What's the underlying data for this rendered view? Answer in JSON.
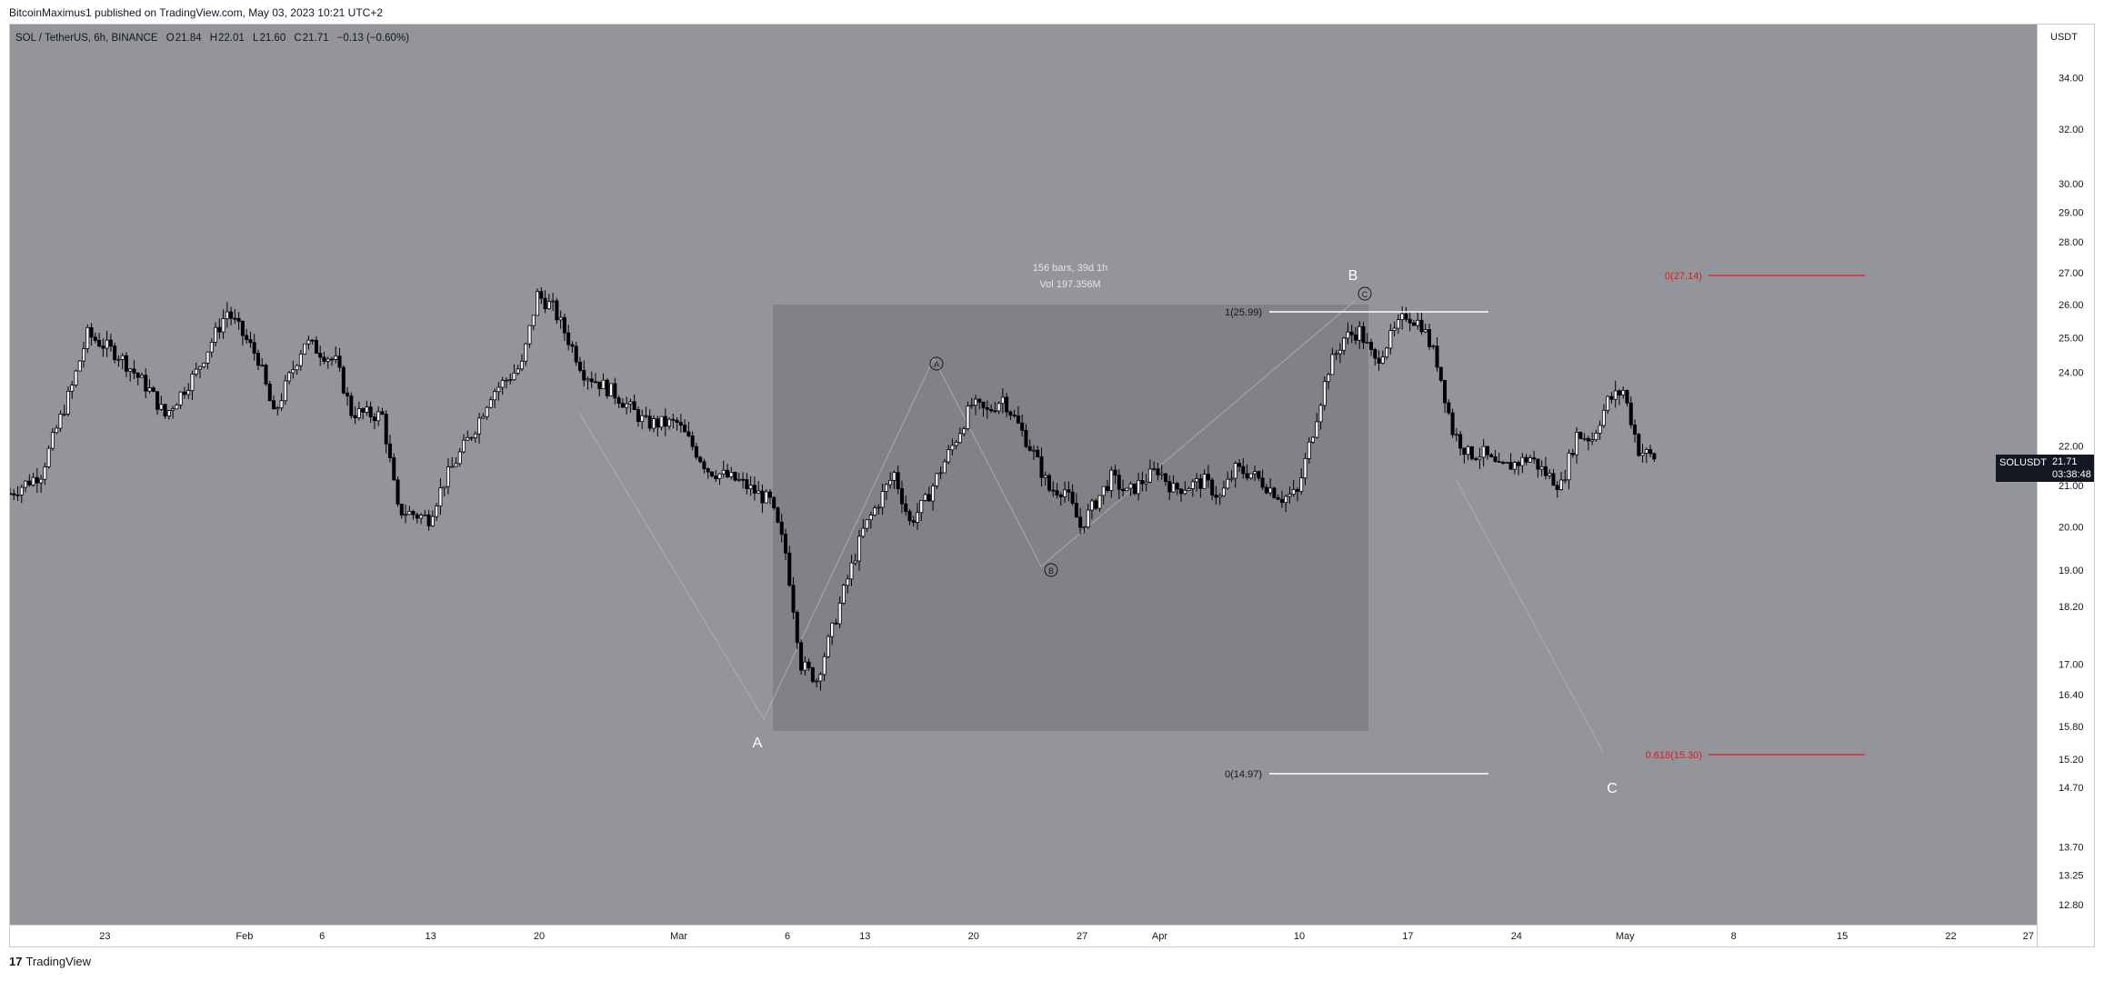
{
  "header": {
    "published": "BitcoinMaximus1 published on TradingView.com, May 03, 2023 10:21 UTC+2"
  },
  "legend": {
    "symbol": "SOL / TetherUS, 6h, BINANCE",
    "o_label": "O",
    "o_value": "21.84",
    "h_label": "H",
    "h_value": "22.01",
    "l_label": "L",
    "l_value": "21.60",
    "c_label": "C",
    "c_value": "21.71",
    "change": "−0.13 (−0.60%)"
  },
  "price_axis": {
    "currency": "USDT",
    "ticks": [
      "34.00",
      "32.00",
      "30.00",
      "29.00",
      "28.00",
      "27.00",
      "26.00",
      "25.00",
      "24.00",
      "22.00",
      "21.00",
      "20.00",
      "19.00",
      "18.20",
      "17.00",
      "16.40",
      "15.80",
      "15.20",
      "14.70",
      "13.70",
      "13.25",
      "12.80"
    ]
  },
  "ticker": {
    "symbol": "SOLUSDT",
    "price": "21.71",
    "countdown": "03:38:48"
  },
  "time_axis": {
    "labels": [
      "23",
      "Feb",
      "6",
      "13",
      "20",
      "Mar",
      "6",
      "13",
      "20",
      "27",
      "Apr",
      "10",
      "17",
      "24",
      "May",
      "8",
      "15",
      "22",
      "27"
    ]
  },
  "measure": {
    "bars": "156 bars, 39d 1h",
    "vol": "Vol 197.356M"
  },
  "waves": {
    "A": "A",
    "B": "B",
    "C": "C",
    "a_minor": "A",
    "b_minor": "B",
    "c_minor": "C"
  },
  "fib_left": {
    "top": "1(25.99)",
    "bottom": "0(14.97)"
  },
  "fib_right": {
    "top": "0(27.14)",
    "bottom": "0.618(15.30)"
  },
  "colors": {
    "plot_bg": "#94959b",
    "candle": "#000000",
    "fib_red": "#e0191e",
    "fib_white": "#ffffff",
    "box": "#808186"
  },
  "footer": {
    "brand": "TradingView"
  },
  "chart_data": {
    "type": "candlestick",
    "interval": "6h",
    "y_scale": "log",
    "ylim": [
      12.5,
      36.2
    ],
    "x_start": "2023-01-17",
    "close_path": [
      {
        "t": "2023-01-17",
        "v": 20.8
      },
      {
        "t": "2023-01-19",
        "v": 21.3
      },
      {
        "t": "2023-01-21",
        "v": 23.6
      },
      {
        "t": "2023-01-22",
        "v": 25.1
      },
      {
        "t": "2023-01-24",
        "v": 24.5
      },
      {
        "t": "2023-01-26",
        "v": 23.5
      },
      {
        "t": "2023-01-27",
        "v": 22.8
      },
      {
        "t": "2023-01-29",
        "v": 24.0
      },
      {
        "t": "2023-01-31",
        "v": 25.8
      },
      {
        "t": "2023-02-02",
        "v": 24.4
      },
      {
        "t": "2023-02-03",
        "v": 22.8
      },
      {
        "t": "2023-02-05",
        "v": 24.9
      },
      {
        "t": "2023-02-07",
        "v": 24.3
      },
      {
        "t": "2023-02-08",
        "v": 22.9
      },
      {
        "t": "2023-02-10",
        "v": 22.8
      },
      {
        "t": "2023-02-11",
        "v": 20.4
      },
      {
        "t": "2023-02-13",
        "v": 20.2
      },
      {
        "t": "2023-02-14",
        "v": 21.1
      },
      {
        "t": "2023-02-16",
        "v": 22.5
      },
      {
        "t": "2023-02-17",
        "v": 23.4
      },
      {
        "t": "2023-02-19",
        "v": 24.2
      },
      {
        "t": "2023-02-20",
        "v": 26.3
      },
      {
        "t": "2023-02-21",
        "v": 25.9
      },
      {
        "t": "2023-02-23",
        "v": 24.0
      },
      {
        "t": "2023-02-25",
        "v": 23.4
      },
      {
        "t": "2023-02-27",
        "v": 22.6
      },
      {
        "t": "2023-03-01",
        "v": 22.6
      },
      {
        "t": "2023-03-03",
        "v": 21.4
      },
      {
        "t": "2023-03-05",
        "v": 21.1
      },
      {
        "t": "2023-03-07",
        "v": 20.6
      },
      {
        "t": "2023-03-08",
        "v": 19.4
      },
      {
        "t": "2023-03-09",
        "v": 17.0
      },
      {
        "t": "2023-03-10",
        "v": 16.7
      },
      {
        "t": "2023-03-11",
        "v": 17.7
      },
      {
        "t": "2023-03-13",
        "v": 19.9
      },
      {
        "t": "2023-03-14",
        "v": 20.6
      },
      {
        "t": "2023-03-15",
        "v": 21.3
      },
      {
        "t": "2023-03-16",
        "v": 20.1
      },
      {
        "t": "2023-03-17",
        "v": 20.6
      },
      {
        "t": "2023-03-19",
        "v": 22.2
      },
      {
        "t": "2023-03-20",
        "v": 23.1
      },
      {
        "t": "2023-03-21",
        "v": 22.9
      },
      {
        "t": "2023-03-22",
        "v": 23.3
      },
      {
        "t": "2023-03-24",
        "v": 21.8
      },
      {
        "t": "2023-03-25",
        "v": 20.9
      },
      {
        "t": "2023-03-26",
        "v": 20.9
      },
      {
        "t": "2023-03-27",
        "v": 20.0
      },
      {
        "t": "2023-03-29",
        "v": 21.2
      },
      {
        "t": "2023-03-30",
        "v": 20.8
      },
      {
        "t": "2023-04-01",
        "v": 21.4
      },
      {
        "t": "2023-04-02",
        "v": 20.9
      },
      {
        "t": "2023-04-04",
        "v": 21.1
      },
      {
        "t": "2023-04-05",
        "v": 20.7
      },
      {
        "t": "2023-04-06",
        "v": 21.4
      },
      {
        "t": "2023-04-07",
        "v": 21.3
      },
      {
        "t": "2023-04-09",
        "v": 20.7
      },
      {
        "t": "2023-04-10",
        "v": 20.8
      },
      {
        "t": "2023-04-11",
        "v": 22.4
      },
      {
        "t": "2023-04-12",
        "v": 24.1
      },
      {
        "t": "2023-04-13",
        "v": 25.0
      },
      {
        "t": "2023-04-14",
        "v": 25.2
      },
      {
        "t": "2023-04-15",
        "v": 24.3
      },
      {
        "t": "2023-04-16",
        "v": 25.0
      },
      {
        "t": "2023-04-17",
        "v": 25.7
      },
      {
        "t": "2023-04-18",
        "v": 25.4
      },
      {
        "t": "2023-04-19",
        "v": 24.3
      },
      {
        "t": "2023-04-20",
        "v": 22.4
      },
      {
        "t": "2023-04-21",
        "v": 21.8
      },
      {
        "t": "2023-04-22",
        "v": 21.8
      },
      {
        "t": "2023-04-23",
        "v": 21.4
      },
      {
        "t": "2023-04-25",
        "v": 21.7
      },
      {
        "t": "2023-04-26",
        "v": 21.3
      },
      {
        "t": "2023-04-27",
        "v": 21.0
      },
      {
        "t": "2023-04-28",
        "v": 22.3
      },
      {
        "t": "2023-04-29",
        "v": 22.2
      },
      {
        "t": "2023-04-30",
        "v": 23.2
      },
      {
        "t": "2023-05-01",
        "v": 23.5
      },
      {
        "t": "2023-05-02",
        "v": 21.9
      },
      {
        "t": "2023-05-03",
        "v": 21.7
      }
    ]
  }
}
